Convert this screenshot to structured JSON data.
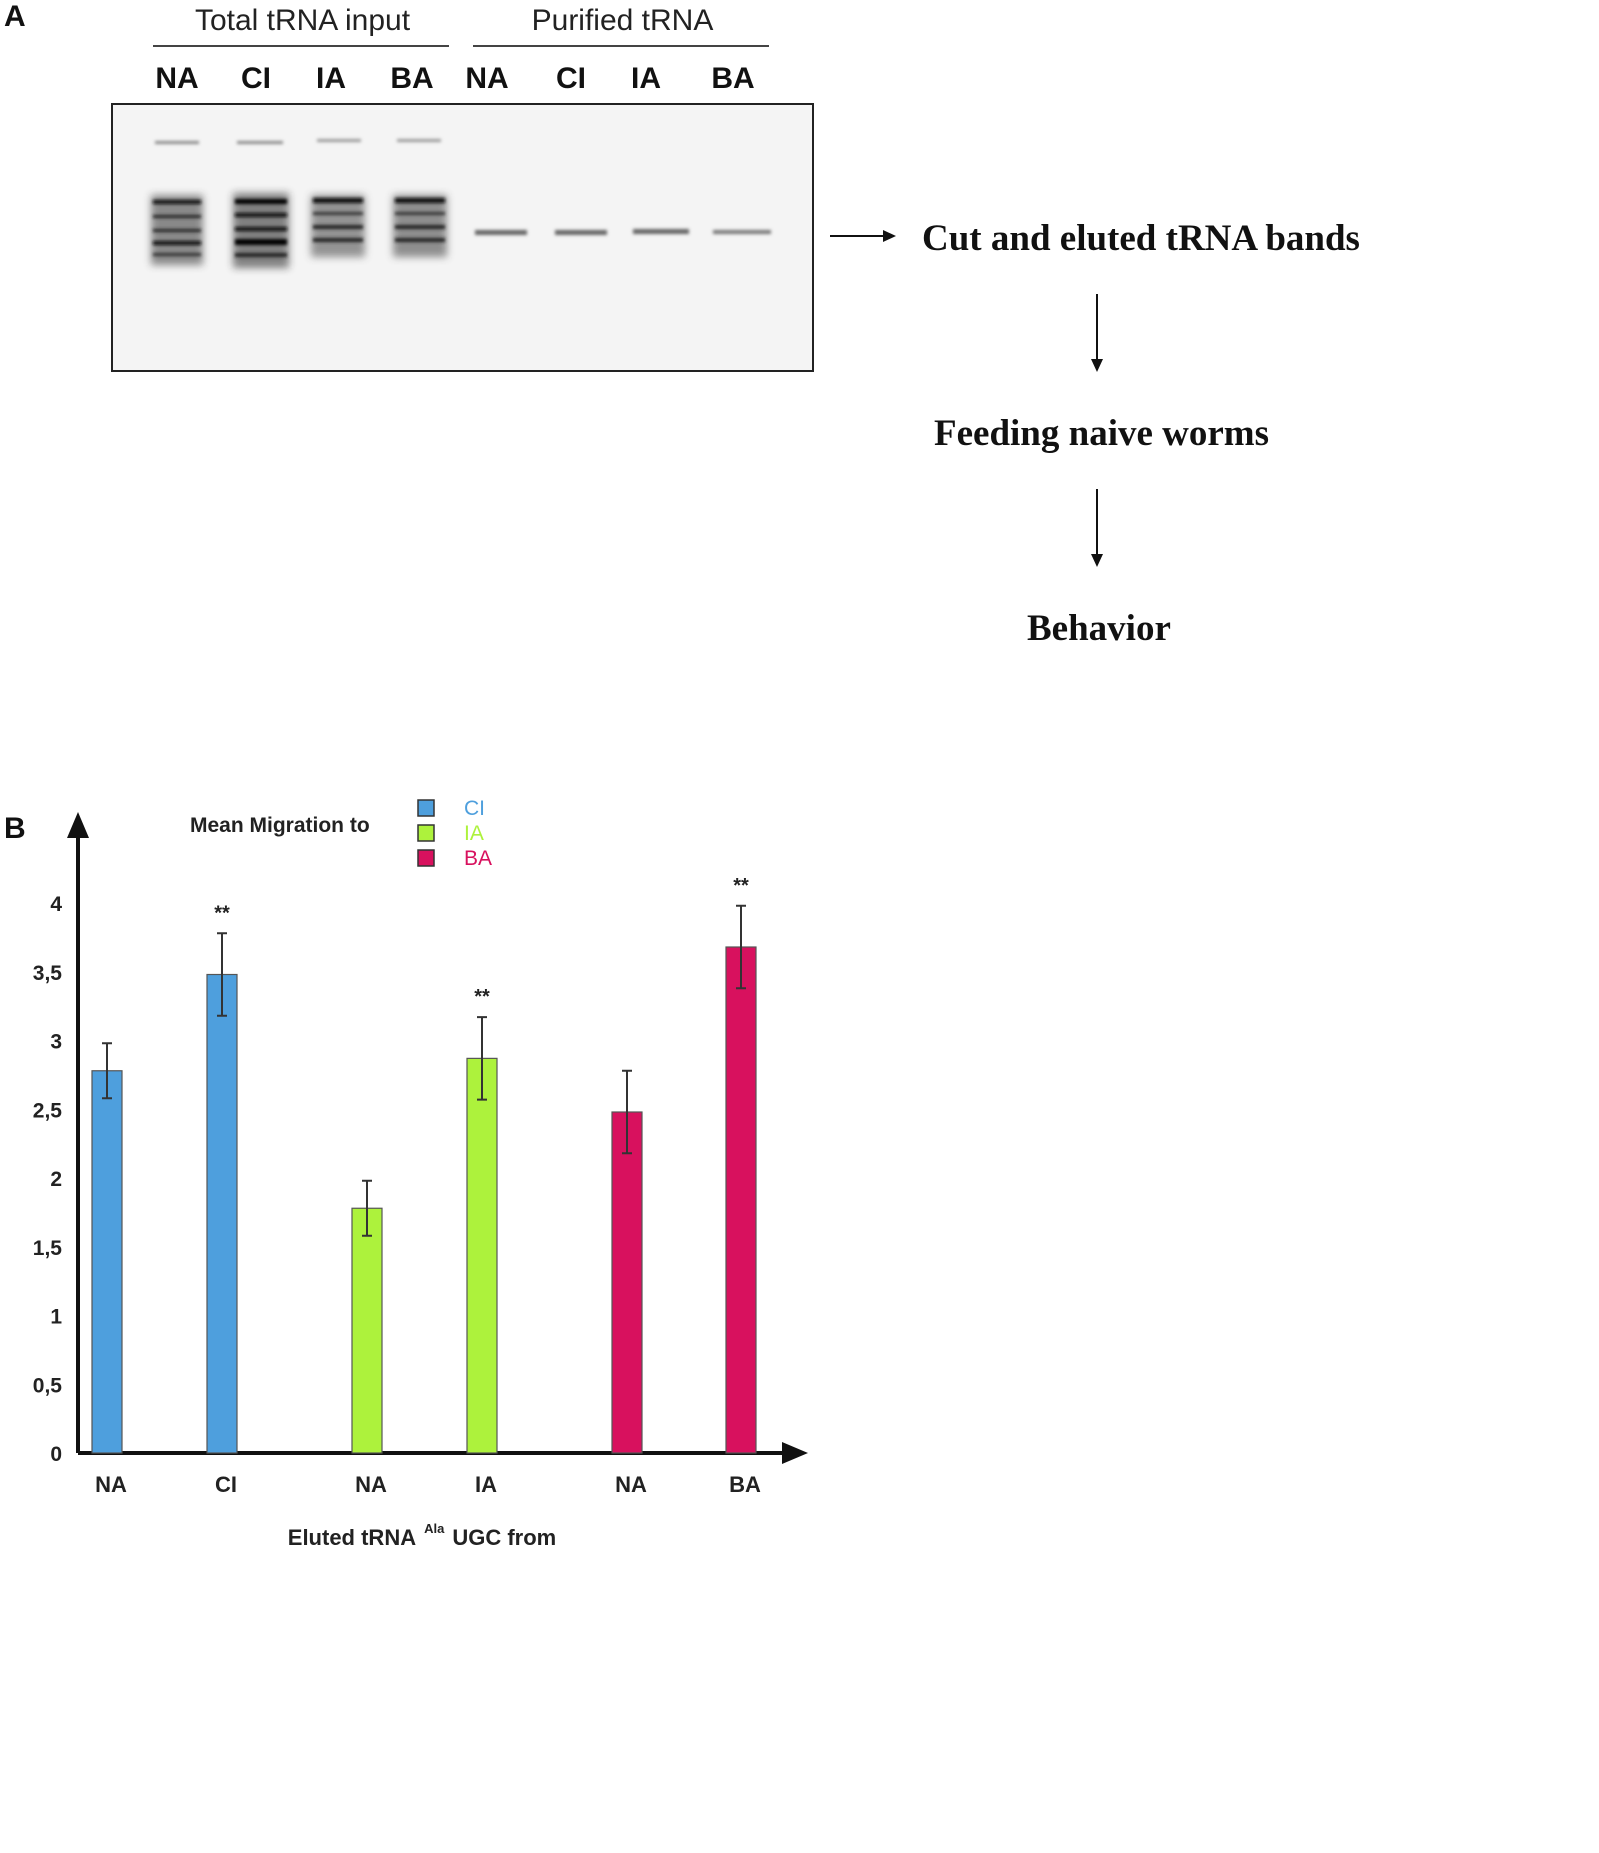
{
  "panel_a": {
    "letter": "A",
    "group_labels": [
      "Total tRNA input",
      "Purified tRNA"
    ],
    "lane_labels": [
      "NA",
      "CI",
      "IA",
      "BA",
      "NA",
      "CI",
      "IA",
      "BA"
    ],
    "flow_steps": [
      "Cut and eluted tRNA bands",
      "Feeding naive worms",
      "Behavior"
    ]
  },
  "panel_b": {
    "letter": "B"
  },
  "chart_data": {
    "type": "bar",
    "title": "Mean Migration to",
    "xlabel_prefix": "Eluted tRNA",
    "xlabel_superscript": "Ala",
    "xlabel_suffix": "UGC from",
    "ylabel": "",
    "ylim": [
      0,
      4
    ],
    "yticks": [
      "0",
      "0,5",
      "1",
      "1,5",
      "2",
      "2,5",
      "3",
      "3,5",
      "4"
    ],
    "ytick_values": [
      0,
      0.5,
      1,
      1.5,
      2,
      2.5,
      3,
      3.5,
      4
    ],
    "categories": [
      "NA",
      "CI",
      "NA",
      "IA",
      "NA",
      "BA"
    ],
    "values": [
      2.78,
      3.48,
      1.78,
      2.87,
      2.48,
      3.68
    ],
    "errors": [
      0.2,
      0.3,
      0.2,
      0.3,
      0.3,
      0.3
    ],
    "significance": [
      "",
      "**",
      "",
      "**",
      "",
      "**"
    ],
    "bar_series": [
      "CI",
      "CI",
      "IA",
      "IA",
      "BA",
      "BA"
    ],
    "legend": [
      {
        "name": "CI",
        "color": "#4e9fdd"
      },
      {
        "name": "IA",
        "color": "#adf23c"
      },
      {
        "name": "BA",
        "color": "#d8115e"
      }
    ],
    "legend_position": "top",
    "grid": false
  }
}
